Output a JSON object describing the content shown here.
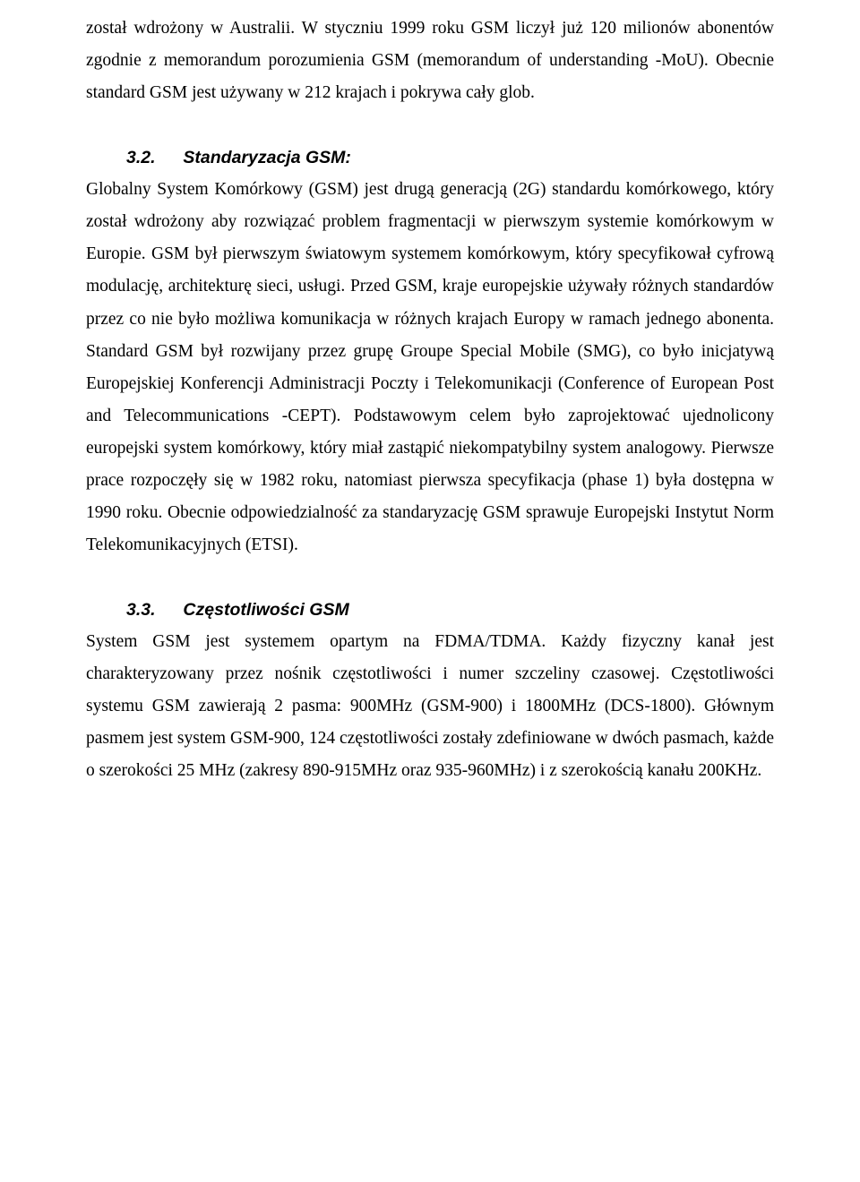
{
  "para1": "został wdrożony w Australii. W styczniu 1999 roku GSM liczył już 120 milionów abonentów zgodnie z memorandum porozumienia GSM (memorandum of understanding -MoU). Obecnie standard GSM jest używany w 212 krajach i pokrywa cały glob.",
  "section32": {
    "num": "3.2.",
    "title": "Standaryzacja GSM:",
    "body": "Globalny System Komórkowy (GSM) jest drugą generacją (2G) standardu komórkowego, który został wdrożony aby rozwiązać problem fragmentacji w pierwszym systemie komórkowym w Europie. GSM był pierwszym światowym systemem komórkowym, który specyfikował cyfrową modulację, architekturę sieci, usługi. Przed GSM, kraje europejskie używały różnych standardów przez co nie było możliwa komunikacja w różnych krajach Europy w ramach jednego abonenta. Standard GSM był rozwijany przez grupę Groupe Special Mobile (SMG), co było inicjatywą Europejskiej Konferencji Administracji Poczty i Telekomunikacji (Conference of European Post and Telecommunications -CEPT). Podstawowym celem było zaprojektować ujednolicony europejski system komórkowy, który miał zastąpić niekompatybilny system analogowy. Pierwsze prace rozpoczęły się w 1982 roku, natomiast pierwsza specyfikacja (phase 1) była dostępna w 1990 roku. Obecnie odpowiedzialność za standaryzację GSM sprawuje Europejski Instytut Norm Telekomunikacyjnych (ETSI)."
  },
  "section33": {
    "num": "3.3.",
    "title": "Częstotliwości GSM",
    "body": "System GSM jest systemem opartym na FDMA/TDMA. Każdy fizyczny kanał jest charakteryzowany przez nośnik częstotliwości i numer szczeliny czasowej. Częstotliwości systemu GSM zawierają 2 pasma: 900MHz (GSM-900) i 1800MHz (DCS-1800). Głównym pasmem jest system GSM-900, 124 częstotliwości zostały zdefiniowane w dwóch pasmach, każde o szerokości 25 MHz  (zakresy 890-915MHz oraz 935-960MHz) i z szerokością kanału 200KHz."
  }
}
